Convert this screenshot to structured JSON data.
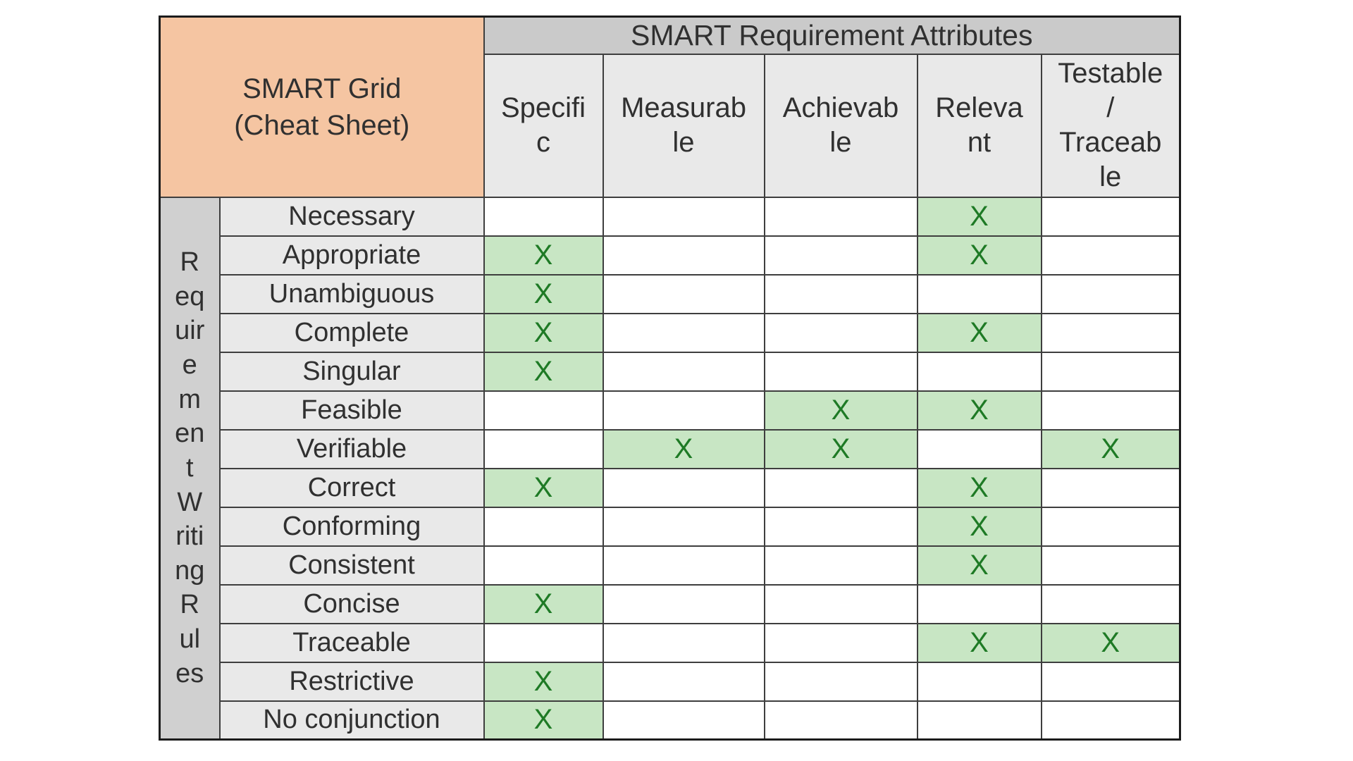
{
  "colors": {
    "corner_bg": "#F5C5A2",
    "attr_header_bg": "#CACACA",
    "col_header_bg": "#E9E9E9",
    "band_bg": "#D0D0D0",
    "row_label_bg": "#E9E9E9",
    "cell_bg": "#FFFFFF",
    "mark_cell_bg": "#C8E6C4",
    "mark_color": "#1E7A25",
    "text_color": "#303030",
    "inner_border": "#3E3E3E",
    "outer_border": "#1C1C1C"
  },
  "chart_data": {
    "type": "table",
    "title": "SMART Grid (Cheat Sheet)",
    "corner_title_lines": [
      "SMART Grid",
      "(Cheat Sheet)"
    ],
    "attributes_header": "SMART Requirement Attributes",
    "columns": [
      {
        "label": "Specific",
        "display_lines": [
          "Specifi",
          "c"
        ]
      },
      {
        "label": "Measurable",
        "display_lines": [
          "Measurab",
          "le"
        ]
      },
      {
        "label": "Achievable",
        "display_lines": [
          "Achievab",
          "le"
        ]
      },
      {
        "label": "Relevant",
        "display_lines": [
          "Releva",
          "nt"
        ]
      },
      {
        "label": "Testable / Traceable",
        "display_lines": [
          "Testable",
          "/",
          "Traceab",
          "le"
        ]
      }
    ],
    "row_group": {
      "label": "Requirement Writing Rules",
      "display_lines": [
        "R",
        "eq",
        "uir",
        "e",
        "m",
        "en",
        "t",
        "W",
        "riti",
        "ng",
        "R",
        "ul",
        "es"
      ]
    },
    "mark_glyph": "X",
    "rows": [
      {
        "label": "Necessary",
        "marks": [
          0,
          0,
          0,
          1,
          0
        ]
      },
      {
        "label": "Appropriate",
        "marks": [
          1,
          0,
          0,
          1,
          0
        ]
      },
      {
        "label": "Unambiguous",
        "marks": [
          1,
          0,
          0,
          0,
          0
        ]
      },
      {
        "label": "Complete",
        "marks": [
          1,
          0,
          0,
          1,
          0
        ]
      },
      {
        "label": "Singular",
        "marks": [
          1,
          0,
          0,
          0,
          0
        ]
      },
      {
        "label": "Feasible",
        "marks": [
          0,
          0,
          1,
          1,
          0
        ]
      },
      {
        "label": "Verifiable",
        "marks": [
          0,
          1,
          1,
          0,
          1
        ]
      },
      {
        "label": "Correct",
        "marks": [
          1,
          0,
          0,
          1,
          0
        ]
      },
      {
        "label": "Conforming",
        "marks": [
          0,
          0,
          0,
          1,
          0
        ]
      },
      {
        "label": "Consistent",
        "marks": [
          0,
          0,
          0,
          1,
          0
        ]
      },
      {
        "label": "Concise",
        "marks": [
          1,
          0,
          0,
          0,
          0
        ]
      },
      {
        "label": "Traceable",
        "marks": [
          0,
          0,
          0,
          1,
          1
        ]
      },
      {
        "label": "Restrictive",
        "marks": [
          1,
          0,
          0,
          0,
          0
        ]
      },
      {
        "label": "No conjunction",
        "marks": [
          1,
          0,
          0,
          0,
          0
        ]
      }
    ]
  }
}
